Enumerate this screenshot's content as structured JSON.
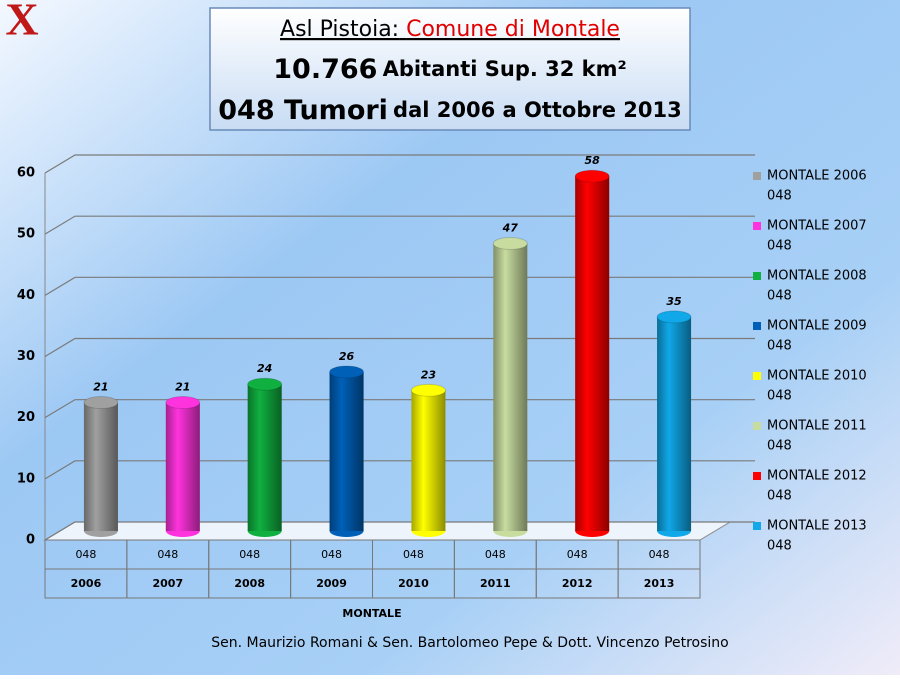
{
  "logo": "X",
  "header": {
    "line1": [
      "Asl Pistoia:",
      "Comune di Montale"
    ],
    "line2": [
      "10.766",
      "Abitanti Sup. 32 km²"
    ],
    "line3": [
      "048 Tumori",
      "dal 2006 a Ottobre 2013"
    ]
  },
  "footer": "Sen. Maurizio Romani & Sen. Bartolomeo Pepe & Dott. Vincenzo Petrosino",
  "chart_data": {
    "type": "bar",
    "categories": [
      "2006",
      "2007",
      "2008",
      "2009",
      "2010",
      "2011",
      "2012",
      "2013"
    ],
    "category_groups": [
      "048",
      "048",
      "048",
      "048",
      "048",
      "048",
      "048",
      "048"
    ],
    "xlabel": "MONTALE",
    "ylim": [
      0,
      60
    ],
    "yticks": [
      0,
      10,
      20,
      30,
      40,
      50,
      60
    ],
    "grid": true,
    "legend": "right",
    "series": [
      {
        "name": "MONTALE 2006",
        "sub": "048",
        "color": "#a0a0a0",
        "values": [
          21,
          null,
          null,
          null,
          null,
          null,
          null,
          null
        ]
      },
      {
        "name": "MONTALE 2007",
        "sub": "048",
        "color": "#ff33dd",
        "values": [
          null,
          21,
          null,
          null,
          null,
          null,
          null,
          null
        ]
      },
      {
        "name": "MONTALE 2008",
        "sub": "048",
        "color": "#10b040",
        "values": [
          null,
          null,
          24,
          null,
          null,
          null,
          null,
          null
        ]
      },
      {
        "name": "MONTALE 2009",
        "sub": "048",
        "color": "#0060b8",
        "values": [
          null,
          null,
          null,
          26,
          null,
          null,
          null,
          null
        ]
      },
      {
        "name": "MONTALE 2010",
        "sub": "048",
        "color": "#ffff00",
        "values": [
          null,
          null,
          null,
          null,
          23,
          null,
          null,
          null
        ]
      },
      {
        "name": "MONTALE 2011",
        "sub": "048",
        "color": "#c8dca0",
        "values": [
          null,
          null,
          null,
          null,
          null,
          47,
          null,
          null
        ]
      },
      {
        "name": "MONTALE 2012",
        "sub": "048",
        "color": "#ff0000",
        "values": [
          null,
          null,
          null,
          null,
          null,
          null,
          58,
          null
        ]
      },
      {
        "name": "MONTALE 2013",
        "sub": "048",
        "color": "#10a8e8",
        "values": [
          null,
          null,
          null,
          null,
          null,
          null,
          null,
          35
        ]
      }
    ]
  }
}
